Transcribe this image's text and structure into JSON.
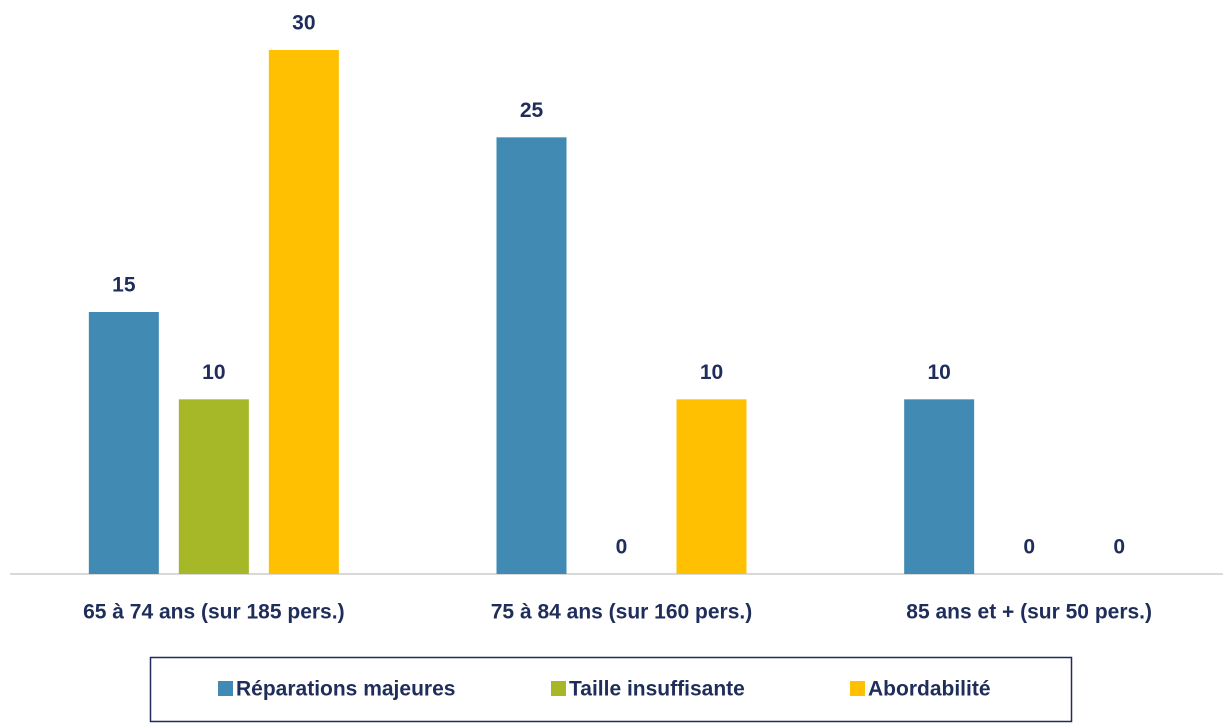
{
  "chart_data": {
    "type": "bar",
    "categories": [
      "65 à 74 ans (sur 185 pers.)",
      "75 à 84 ans (sur 160 pers.)",
      "85 ans et + (sur 50 pers.)"
    ],
    "series": [
      {
        "name": "Réparations majeures",
        "color": "#418ab3",
        "values": [
          15,
          25,
          10
        ]
      },
      {
        "name": "Taille insuffisante",
        "color": "#a6b727",
        "values": [
          10,
          0,
          0
        ]
      },
      {
        "name": "Abordabilité",
        "color": "#fec000",
        "values": [
          30,
          10,
          0
        ]
      }
    ],
    "grid": false,
    "legend": "bottom"
  }
}
